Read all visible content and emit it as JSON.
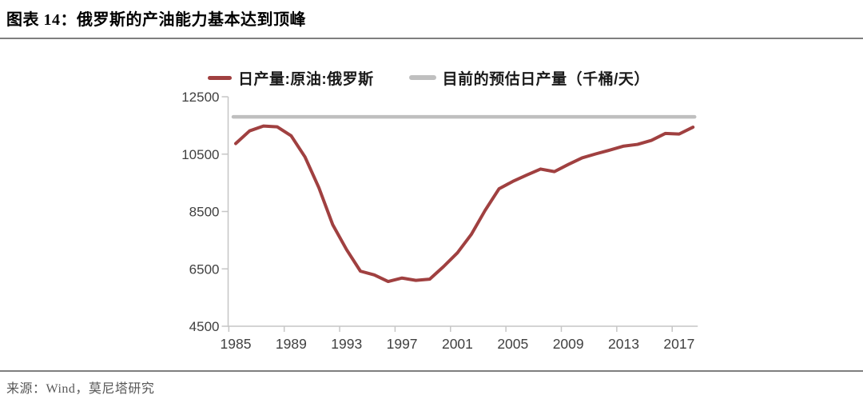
{
  "header": {
    "title": "图表 14：俄罗斯的产油能力基本达到顶峰"
  },
  "legend": {
    "series1_label": "日产量:原油:俄罗斯",
    "series2_label": "目前的预估日产量（千桶/天）"
  },
  "footer": {
    "source": "来源：Wind，莫尼塔研究"
  },
  "colors": {
    "series_line": "#A04040",
    "reference_line": "#BFBFBF",
    "axis": "#C6C6C6",
    "tick_label": "#404040",
    "divider": "#7F7F7F",
    "source_text": "#575757"
  },
  "chart_data": {
    "type": "line",
    "title": "",
    "xlabel": "",
    "ylabel": "",
    "unit": "千桶/天",
    "grid": false,
    "legend_position": "top",
    "ylim": [
      4500,
      12500
    ],
    "y_ticks": [
      12500,
      10500,
      8500,
      6500,
      4500
    ],
    "x_ticks": [
      1985,
      1989,
      1993,
      1997,
      2001,
      2005,
      2009,
      2013,
      2017
    ],
    "x": [
      1985,
      1986,
      1987,
      1988,
      1989,
      1990,
      1991,
      1992,
      1993,
      1994,
      1995,
      1996,
      1997,
      1998,
      1999,
      2000,
      2001,
      2002,
      2003,
      2004,
      2005,
      2006,
      2007,
      2008,
      2009,
      2010,
      2011,
      2012,
      2013,
      2014,
      2015,
      2016,
      2017,
      2018
    ],
    "series": [
      {
        "name": "日产量:原油:俄罗斯",
        "color": "#A04040",
        "values": [
          10870,
          11310,
          11480,
          11450,
          11140,
          10400,
          9330,
          8040,
          7170,
          6420,
          6290,
          6060,
          6180,
          6100,
          6140,
          6580,
          7060,
          7700,
          8540,
          9290,
          9550,
          9770,
          9980,
          9890,
          10140,
          10370,
          10510,
          10640,
          10780,
          10840,
          10980,
          11220,
          11200,
          11440
        ]
      },
      {
        "name": "目前的预估日产量（千桶/天）",
        "color": "#BFBFBF",
        "type": "reference",
        "value": 11800
      }
    ]
  }
}
